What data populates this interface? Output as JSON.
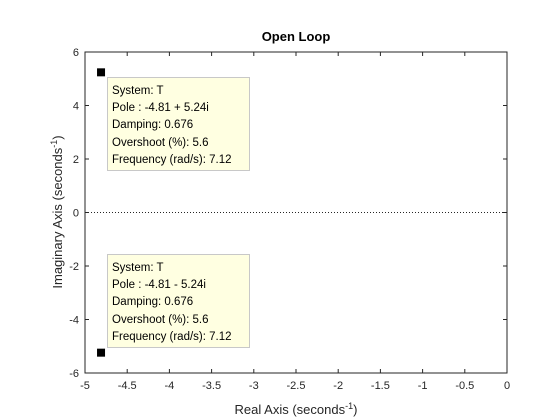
{
  "chart_data": {
    "type": "scatter",
    "title": "Open Loop",
    "xlabel": "Real Axis (seconds",
    "ylabel": "Imaginary Axis (seconds",
    "axis_unit_exponent": "-1",
    "axis_unit_close": ")",
    "xlim": [
      -5,
      0
    ],
    "ylim": [
      -6,
      6
    ],
    "xticks": [
      -5,
      -4.5,
      -4,
      -3.5,
      -3,
      -2.5,
      -2,
      -1.5,
      -1,
      -0.5,
      0
    ],
    "yticks": [
      -6,
      -4,
      -2,
      0,
      2,
      4,
      6
    ],
    "xtick_labels": [
      "-5",
      "-4.5",
      "-4",
      "-3.5",
      "-3",
      "-2.5",
      "-2",
      "-1.5",
      "-1",
      "-0.5",
      "0"
    ],
    "ytick_labels": [
      "-6",
      "-4",
      "-2",
      "0",
      "2",
      "4",
      "6"
    ],
    "grid": false,
    "zero_line": true,
    "marker": "square",
    "marker_color": "#000000",
    "points": [
      {
        "x": -4.81,
        "y": 5.24
      },
      {
        "x": -4.81,
        "y": -5.24
      }
    ],
    "datatips": [
      {
        "system": "System: T",
        "pole": "Pole : -4.81 + 5.24i",
        "damping": "Damping: 0.676",
        "overshoot": "Overshoot (%): 5.6",
        "frequency": "Frequency (rad/s): 7.12"
      },
      {
        "system": "System: T",
        "pole": "Pole : -4.81 - 5.24i",
        "damping": "Damping: 0.676",
        "overshoot": "Overshoot (%): 5.6",
        "frequency": "Frequency (rad/s): 7.12"
      }
    ]
  },
  "colors": {
    "axes": "#262626",
    "datatip_background": "#ffffe1",
    "datatip_border": "#c8c8c8",
    "marker": "#000000"
  }
}
